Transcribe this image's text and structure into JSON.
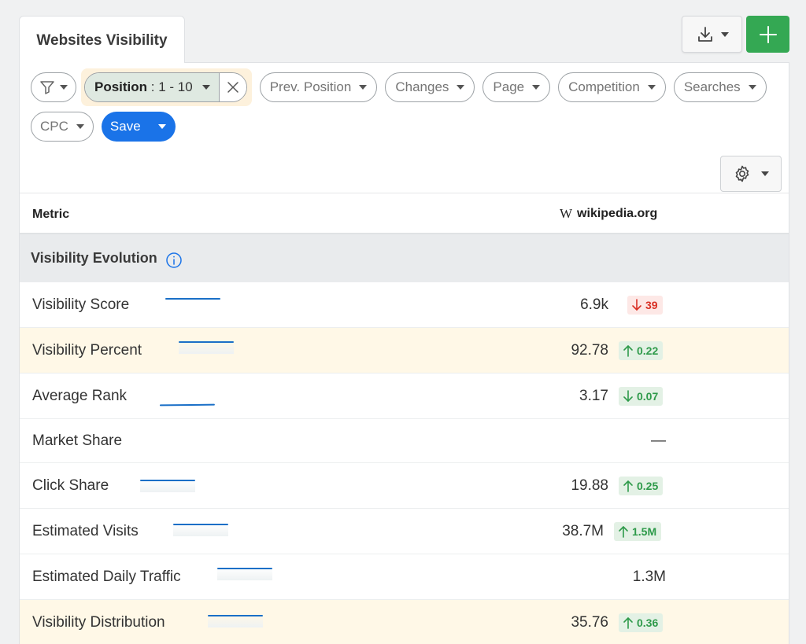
{
  "tab": {
    "title": "Websites Visibility"
  },
  "toolbar": {
    "download_icon": "download-icon",
    "add_icon": "plus-icon"
  },
  "filters": {
    "filter_icon": "funnel-icon",
    "position": {
      "label": "Position",
      "value": ": 1 - 10"
    },
    "chips": [
      {
        "label": "Prev. Position"
      },
      {
        "label": "Changes"
      },
      {
        "label": "Page"
      },
      {
        "label": "Competition"
      },
      {
        "label": "Searches"
      },
      {
        "label": "CPC"
      }
    ],
    "save_label": "Save"
  },
  "table": {
    "header_metric": "Metric",
    "header_site": "wikipedia.org",
    "site_logo": "W",
    "section_title": "Visibility Evolution",
    "rows": [
      {
        "label": "Visibility Score",
        "value": "6.9k",
        "change": "39",
        "direction": "down",
        "tone": "negative",
        "highlight": false
      },
      {
        "label": "Visibility Percent",
        "value": "92.78",
        "change": "0.22",
        "direction": "up",
        "tone": "positive",
        "highlight": true
      },
      {
        "label": "Average Rank",
        "value": "3.17",
        "change": "0.07",
        "direction": "down",
        "tone": "positive",
        "highlight": false
      },
      {
        "label": "Market Share",
        "value": "—",
        "change": "",
        "direction": "",
        "tone": "",
        "highlight": false
      },
      {
        "label": "Click Share",
        "value": "19.88",
        "change": "0.25",
        "direction": "up",
        "tone": "positive",
        "highlight": false
      },
      {
        "label": "Estimated Visits",
        "value": "38.7M",
        "change": "1.5M",
        "direction": "up",
        "tone": "positive",
        "highlight": false
      },
      {
        "label": "Estimated Daily Traffic",
        "value": "1.3M",
        "change": "",
        "direction": "",
        "tone": "",
        "highlight": false
      },
      {
        "label": "Visibility Distribution",
        "value": "35.76",
        "change": "0.36",
        "direction": "up",
        "tone": "positive",
        "highlight": true
      }
    ]
  },
  "colors": {
    "accent": "#1a73e8",
    "add": "#34a853",
    "positive": "#2e9a4a",
    "negative": "#d93025",
    "highlight": "#fff8e7"
  }
}
